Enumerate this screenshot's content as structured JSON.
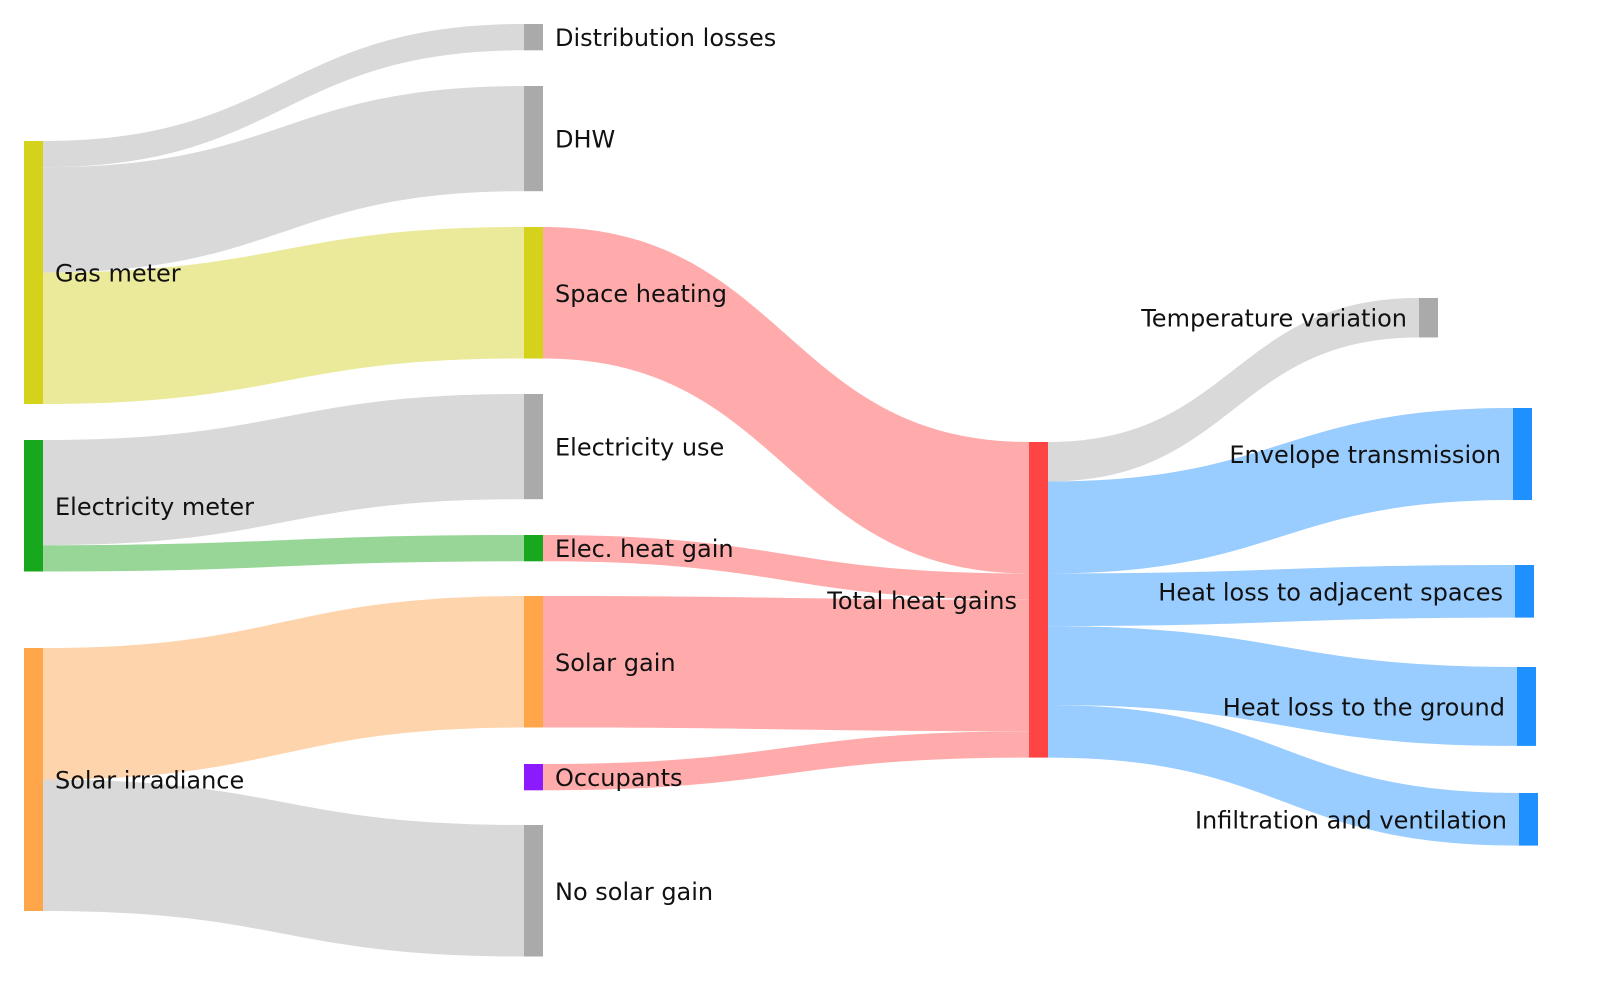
{
  "chart_data": {
    "type": "sankey",
    "title": "",
    "nodes": [
      {
        "id": "gas",
        "label": "Gas meter",
        "color": "#d4d21a"
      },
      {
        "id": "elec",
        "label": "Electricity meter",
        "color": "#18a81e"
      },
      {
        "id": "solar",
        "label": "Solar irradiance",
        "color": "#ffa54a"
      },
      {
        "id": "dist",
        "label": "Distribution losses",
        "color": "#aaaaaa"
      },
      {
        "id": "dhw",
        "label": "DHW",
        "color": "#aaaaaa"
      },
      {
        "id": "space",
        "label": "Space heating",
        "color": "#d4d21a"
      },
      {
        "id": "elecuse",
        "label": "Electricity use",
        "color": "#aaaaaa"
      },
      {
        "id": "elecgain",
        "label": "Elec. heat gain",
        "color": "#18a81e"
      },
      {
        "id": "solargain",
        "label": "Solar gain",
        "color": "#ffa54a"
      },
      {
        "id": "occ",
        "label": "Occupants",
        "color": "#8b1aff"
      },
      {
        "id": "nosolar",
        "label": "No solar gain",
        "color": "#aaaaaa"
      },
      {
        "id": "total",
        "label": "Total heat gains",
        "color": "#ff4444"
      },
      {
        "id": "tempvar",
        "label": "Temperature variation",
        "color": "#aaaaaa"
      },
      {
        "id": "env",
        "label": "Envelope transmission",
        "color": "#1e90ff"
      },
      {
        "id": "adj",
        "label": "Heat loss to adjacent spaces",
        "color": "#1e90ff"
      },
      {
        "id": "ground",
        "label": "Heat loss to the ground",
        "color": "#1e90ff"
      },
      {
        "id": "infil",
        "label": "Infiltration and ventilation",
        "color": "#1e90ff"
      }
    ],
    "links": [
      {
        "source": "gas",
        "target": "dist",
        "value": 1,
        "color": "#d9d9d9"
      },
      {
        "source": "gas",
        "target": "dhw",
        "value": 4,
        "color": "#d9d9d9"
      },
      {
        "source": "gas",
        "target": "space",
        "value": 5,
        "color": "#ebea9b"
      },
      {
        "source": "elec",
        "target": "elecuse",
        "value": 4,
        "color": "#d9d9d9"
      },
      {
        "source": "elec",
        "target": "elecgain",
        "value": 1,
        "color": "#98d698"
      },
      {
        "source": "solar",
        "target": "solargain",
        "value": 5,
        "color": "#fed4ac"
      },
      {
        "source": "solar",
        "target": "nosolar",
        "value": 5,
        "color": "#d9d9d9"
      },
      {
        "source": "space",
        "target": "total",
        "value": 5,
        "color": "#ffabab"
      },
      {
        "source": "elecgain",
        "target": "total",
        "value": 1,
        "color": "#ffabab"
      },
      {
        "source": "solargain",
        "target": "total",
        "value": 5,
        "color": "#ffabab"
      },
      {
        "source": "occ",
        "target": "total",
        "value": 1,
        "color": "#ffabab"
      },
      {
        "source": "total",
        "target": "tempvar",
        "value": 1.5,
        "color": "#d9d9d9"
      },
      {
        "source": "total",
        "target": "env",
        "value": 3.5,
        "color": "#99ccff"
      },
      {
        "source": "total",
        "target": "adj",
        "value": 2,
        "color": "#99ccff"
      },
      {
        "source": "total",
        "target": "ground",
        "value": 3,
        "color": "#99ccff"
      },
      {
        "source": "total",
        "target": "infil",
        "value": 2,
        "color": "#99ccff"
      }
    ]
  }
}
